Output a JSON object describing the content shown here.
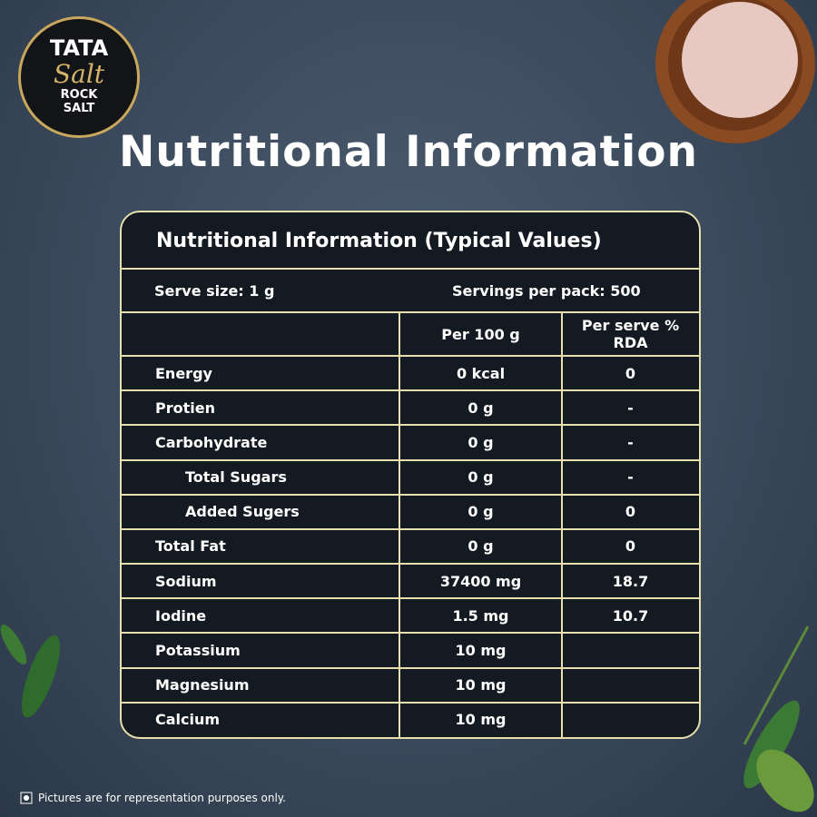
{
  "logo": {
    "brand": "TATA",
    "product": "Salt",
    "variant_line1": "ROCK",
    "variant_line2": "SALT"
  },
  "heading": "Nutritional Information",
  "table": {
    "title": "Nutritional Information (Typical Values)",
    "serve_size": "Serve size: 1  g",
    "servings_per_pack": "Servings per pack: 500",
    "columns": [
      "Per 100 g",
      "Per serve % RDA"
    ],
    "rows": [
      {
        "label": "Energy",
        "per_100g": "0 kcal",
        "rda": "0",
        "sub": false
      },
      {
        "label": "Protien",
        "per_100g": "0 g",
        "rda": "-",
        "sub": false
      },
      {
        "label": "Carbohydrate",
        "per_100g": "0 g",
        "rda": "-",
        "sub": false
      },
      {
        "label": "Total Sugars",
        "per_100g": "0 g",
        "rda": "-",
        "sub": true
      },
      {
        "label": "Added Sugers",
        "per_100g": "0 g",
        "rda": "0",
        "sub": true
      },
      {
        "label": "Total Fat",
        "per_100g": "0 g",
        "rda": "0",
        "sub": false
      },
      {
        "label": "Sodium",
        "per_100g": "37400 mg",
        "rda": "18.7",
        "sub": false
      },
      {
        "label": "Iodine",
        "per_100g": "1.5 mg",
        "rda": "10.7",
        "sub": false
      },
      {
        "label": "Potassium",
        "per_100g": "10 mg",
        "rda": null,
        "sub": false
      },
      {
        "label": "Magnesium",
        "per_100g": "10 mg",
        "rda": null,
        "sub": false
      },
      {
        "label": "Calcium",
        "per_100g": "10 mg",
        "rda": null,
        "sub": false
      }
    ]
  },
  "footnote": "Pictures are for representation purposes only."
}
